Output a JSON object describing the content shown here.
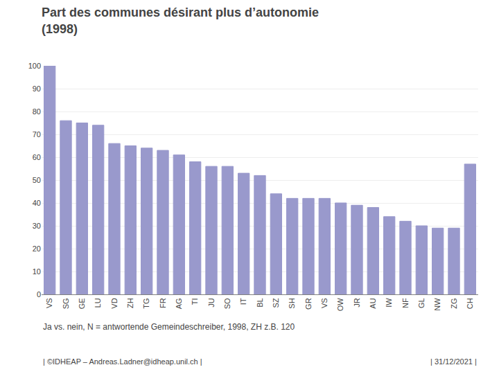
{
  "chart_data": {
    "type": "bar",
    "title": "Part des communes désirant plus d’autonomie\n(1998)",
    "subtitle": "Ja vs. nein, N = antwortende Gemeindeschreiber, 1998, ZH z.B. 120",
    "annotations": [
      "| ©IDHEAP – Andreas.Ladner@idheap.unil.ch |",
      "| 31/12/2021 |"
    ],
    "categories": [
      "VS",
      "SG",
      "GE",
      "LU",
      "VD",
      "ZH",
      "TG",
      "FR",
      "AG",
      "TI",
      "JU",
      "SO",
      "IT",
      "BL",
      "SZ",
      "SH",
      "GR",
      "VS",
      "OW",
      "JR",
      "AU",
      "IW",
      "NF",
      "GL",
      "NW",
      "ZG",
      "CH"
    ],
    "values": [
      100,
      76,
      75,
      74,
      66,
      65,
      64,
      63,
      61,
      58,
      56,
      56,
      53,
      52,
      44,
      42,
      42,
      42,
      40,
      39,
      38,
      34,
      32,
      30,
      29,
      29,
      57
    ],
    "color": "#9999cc",
    "ylim": [
      0,
      100
    ],
    "yticks": [
      0,
      10,
      20,
      30,
      40,
      50,
      60,
      70,
      80,
      90,
      100
    ],
    "grid": true
  }
}
